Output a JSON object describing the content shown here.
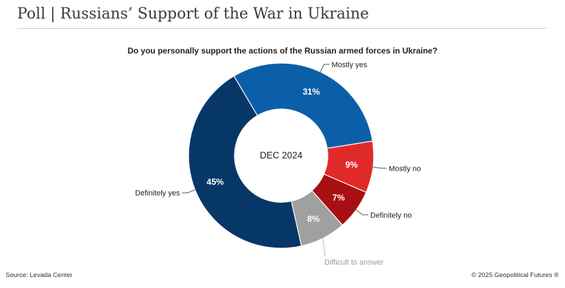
{
  "page": {
    "title": "Poll | Russians’ Support of the War in Ukraine",
    "source": "Source: Levada Center",
    "copyright": "© 2025 Geopolitical Futures ®"
  },
  "chart_data": {
    "type": "pie",
    "subtitle": "Do you personally support the actions of the Russian armed forces in Ukraine?",
    "center_label": "DEC 2024",
    "slices": [
      {
        "name": "Mostly yes",
        "value": 31,
        "label": "31%",
        "color": "#0b5fa9"
      },
      {
        "name": "Mostly no",
        "value": 9,
        "label": "9%",
        "color": "#e02a2a"
      },
      {
        "name": "Definitely no",
        "value": 7,
        "label": "7%",
        "color": "#a80f12"
      },
      {
        "name": "Difficult to answer",
        "value": 8,
        "label": "8%",
        "color": "#a0a0a0"
      },
      {
        "name": "Definitely yes",
        "value": 45,
        "label": "45%",
        "color": "#073766"
      }
    ],
    "label_colors": {
      "default": "#222222",
      "muted": "#9a9a9a"
    }
  }
}
